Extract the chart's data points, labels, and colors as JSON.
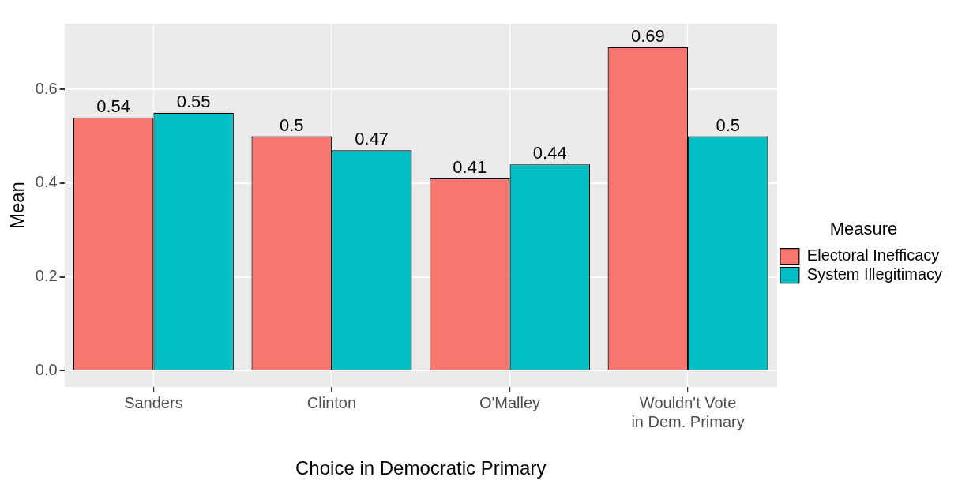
{
  "chart_data": {
    "type": "bar",
    "xlabel": "Choice in Democratic Primary",
    "ylabel": "Mean",
    "legend_title": "Measure",
    "categories": [
      "Sanders",
      "Clinton",
      "O'Malley",
      "Wouldn't Vote\nin Dem. Primary"
    ],
    "series": [
      {
        "name": "Electoral Inefficacy",
        "color": "#f8766d",
        "values": [
          0.54,
          0.5,
          0.41,
          0.69
        ]
      },
      {
        "name": "System Illegitimacy",
        "color": "#00bfc4",
        "values": [
          0.55,
          0.47,
          0.44,
          0.5
        ]
      }
    ],
    "ylim": [
      -0.035,
      0.74
    ],
    "yticks": [
      {
        "value": 0,
        "label": "0.0"
      },
      {
        "value": 0.2,
        "label": "0.2"
      },
      {
        "value": 0.4,
        "label": "0.4"
      },
      {
        "value": 0.6,
        "label": "0.6"
      }
    ],
    "grid": true,
    "legend": "right",
    "data_labels": true
  }
}
